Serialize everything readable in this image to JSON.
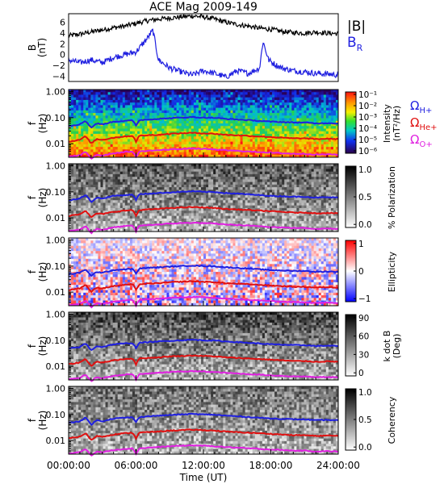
{
  "title": "ACE Mag 2009-149",
  "colors": {
    "black": "#000000",
    "blue": "#1f1fe0",
    "red": "#e01010",
    "magenta": "#e020e0",
    "background": "#ffffff"
  },
  "legend": {
    "b_label": "|B|",
    "br_label": "B",
    "br_sub": "R",
    "h_label": "Ω",
    "h_sub": "H+",
    "he_label": "Ω",
    "he_sub": "He+",
    "o_label": "Ω",
    "o_sub": "O+"
  },
  "chart_data": [
    {
      "type": "line",
      "name": "field",
      "ylabel_main": "B",
      "ylabel_unit": "(nT)",
      "ylim": [
        -5,
        7.6
      ],
      "y_ticks": [
        "6",
        "4",
        "2",
        "0",
        "−2",
        "−4"
      ],
      "y_tick_values": [
        6,
        4,
        2,
        0,
        -2,
        -4
      ],
      "x_range_hours": [
        0,
        24
      ],
      "series": [
        {
          "name": "|B|",
          "color": "#000000",
          "x": [
            0,
            1,
            2,
            3,
            4,
            5,
            6,
            7,
            8,
            9,
            10,
            11,
            12,
            13,
            14,
            15,
            16,
            17,
            18,
            19,
            20,
            21,
            22,
            23,
            24
          ],
          "values": [
            3.5,
            3.8,
            4.2,
            4.6,
            5.0,
            5.3,
            5.8,
            6.3,
            6.6,
            6.8,
            7.0,
            7.2,
            7.0,
            6.6,
            6.0,
            5.6,
            5.3,
            4.9,
            4.7,
            4.3,
            4.1,
            4.0,
            4.2,
            4.0,
            3.9
          ]
        },
        {
          "name": "B_R",
          "color": "#1f1fe0",
          "x": [
            0,
            1,
            2,
            3,
            4,
            5,
            6,
            7,
            7.5,
            8,
            9,
            10,
            11,
            12,
            13,
            14,
            15,
            16,
            17,
            17.3,
            17.8,
            18.5,
            19,
            20,
            21,
            22,
            23,
            24
          ],
          "values": [
            -1.0,
            -1.5,
            -1.0,
            -1.5,
            -0.5,
            0.0,
            0.5,
            3.0,
            4.5,
            -1.0,
            -2.5,
            -3.2,
            -3.8,
            -3.0,
            -3.5,
            -4.2,
            -3.0,
            -3.5,
            -2.5,
            2.5,
            -1.0,
            -2.0,
            -2.5,
            -3.0,
            -3.2,
            -3.5,
            -3.6,
            -3.8
          ]
        }
      ]
    },
    {
      "type": "heatmap",
      "name": "intensity",
      "ylabel_main": "f",
      "ylabel_unit": "(Hz)",
      "y_axis": "log",
      "ylim": [
        0.003,
        1.2
      ],
      "colorbar": {
        "labels": [
          "Intensity",
          "(nT²/Hz)"
        ],
        "ticks": [
          "10⁻¹",
          "10⁻²",
          "10⁻³",
          "10⁻⁴",
          "10⁻⁵",
          "10⁻⁶"
        ],
        "tick_values": [
          -1,
          -2,
          -3,
          -4,
          -5,
          -6
        ],
        "scale": "log"
      }
    },
    {
      "type": "heatmap",
      "name": "polarization",
      "ylabel_main": "f",
      "ylabel_unit": "(Hz)",
      "y_axis": "log",
      "colorbar": {
        "labels": [
          "% Polarization"
        ],
        "ticks": [
          "1.0",
          "0.5",
          "0.0"
        ],
        "tick_values": [
          1.0,
          0.5,
          0.0
        ],
        "scale": "gray"
      }
    },
    {
      "type": "heatmap",
      "name": "ellipticity",
      "ylabel_main": "f",
      "ylabel_unit": "(Hz)",
      "y_axis": "log",
      "colorbar": {
        "labels": [
          "Ellipticity"
        ],
        "ticks": [
          "1",
          "0",
          "−1"
        ],
        "tick_values": [
          1,
          0,
          -1
        ],
        "scale": "diverging"
      }
    },
    {
      "type": "heatmap",
      "name": "kdotb",
      "ylabel_main": "f",
      "ylabel_unit": "(Hz)",
      "y_axis": "log",
      "colorbar": {
        "labels": [
          "k dot B",
          "(Deg)"
        ],
        "ticks": [
          "90",
          "60",
          "30",
          "0"
        ],
        "tick_values": [
          90,
          60,
          30,
          0
        ],
        "scale": "gray"
      }
    },
    {
      "type": "heatmap",
      "name": "coherency",
      "ylabel_main": "f",
      "ylabel_unit": "(Hz)",
      "y_axis": "log",
      "colorbar": {
        "labels": [
          "Coherency"
        ],
        "ticks": [
          "1.0",
          "0.5",
          "0.0"
        ],
        "tick_values": [
          1.0,
          0.5,
          0.0
        ],
        "scale": "gray"
      }
    }
  ],
  "freq_ticks": [
    "1.00",
    "0.10",
    "0.01"
  ],
  "freq_tick_values": [
    1.0,
    0.1,
    0.01
  ],
  "gyro_lines": [
    {
      "name": "H+",
      "color": "#1f1fe0",
      "x": [
        0,
        1,
        1.5,
        2,
        2.5,
        3,
        4,
        5,
        5.7,
        6,
        6.3,
        7,
        8,
        9,
        10,
        11,
        12,
        13,
        14,
        15,
        16,
        17,
        18,
        19,
        20,
        21,
        22,
        23,
        24
      ],
      "values": [
        0.048,
        0.055,
        0.075,
        0.04,
        0.06,
        0.055,
        0.07,
        0.075,
        0.078,
        0.05,
        0.08,
        0.085,
        0.09,
        0.095,
        0.1,
        0.105,
        0.1,
        0.098,
        0.09,
        0.085,
        0.08,
        0.075,
        0.07,
        0.068,
        0.065,
        0.065,
        0.06,
        0.062,
        0.06
      ]
    },
    {
      "name": "He+",
      "color": "#e01010",
      "x": [
        0,
        1,
        1.5,
        2,
        2.5,
        3,
        4,
        5,
        5.7,
        6,
        6.3,
        7,
        8,
        9,
        10,
        11,
        12,
        13,
        14,
        15,
        16,
        17,
        18,
        19,
        20,
        21,
        22,
        23,
        24
      ],
      "values": [
        0.012,
        0.014,
        0.019,
        0.01,
        0.015,
        0.014,
        0.017,
        0.019,
        0.02,
        0.012,
        0.02,
        0.021,
        0.022,
        0.024,
        0.025,
        0.026,
        0.025,
        0.024,
        0.022,
        0.021,
        0.02,
        0.019,
        0.018,
        0.017,
        0.016,
        0.016,
        0.015,
        0.0155,
        0.015
      ]
    },
    {
      "name": "O+",
      "color": "#e020e0",
      "x": [
        0,
        1,
        1.5,
        2,
        2.5,
        3,
        4,
        5,
        5.7,
        6,
        6.3,
        7,
        8,
        9,
        10,
        11,
        12,
        13,
        14,
        15,
        16,
        17,
        18,
        19,
        20,
        21,
        22,
        23,
        24
      ],
      "values": [
        0.0032,
        0.0035,
        0.0048,
        0.0026,
        0.0038,
        0.0035,
        0.0043,
        0.0048,
        0.005,
        0.003,
        0.005,
        0.0053,
        0.0056,
        0.006,
        0.0063,
        0.0065,
        0.0063,
        0.006,
        0.0056,
        0.0053,
        0.005,
        0.0048,
        0.0045,
        0.0043,
        0.0041,
        0.0041,
        0.0038,
        0.0039,
        0.0038
      ]
    }
  ],
  "x_axis": {
    "label": "Time (UT)",
    "ticks": [
      "00:00:00",
      "06:00:00",
      "12:00:00",
      "18:00:00",
      "24:00:00"
    ],
    "tick_values": [
      0,
      6,
      12,
      18,
      24
    ]
  }
}
